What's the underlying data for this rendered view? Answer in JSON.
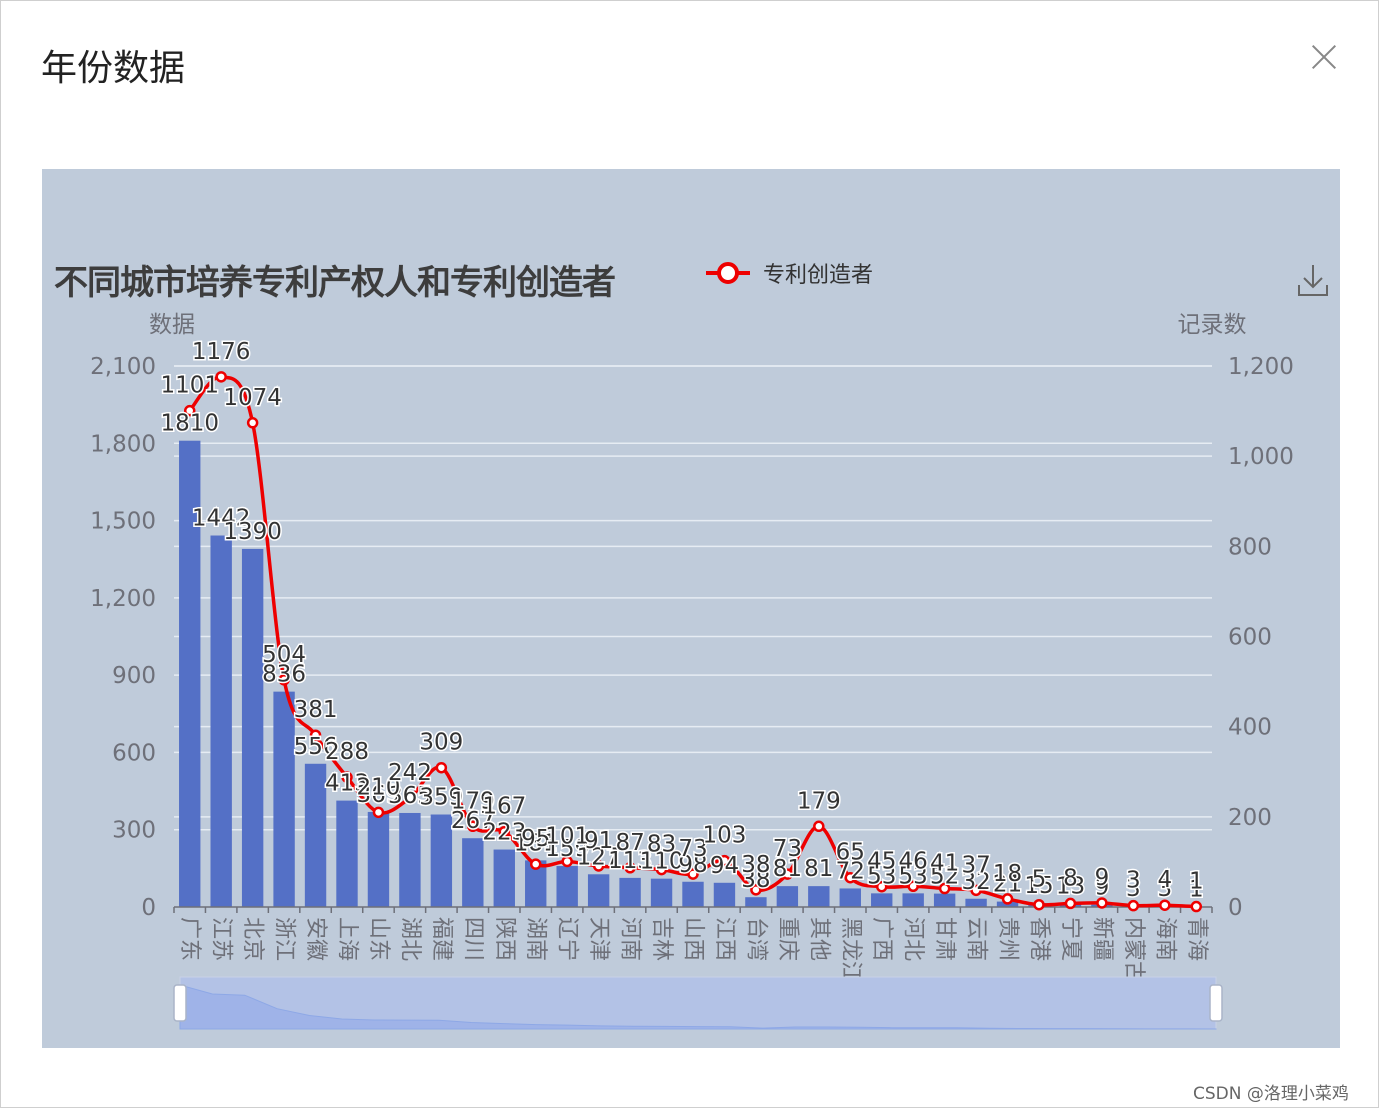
{
  "modal": {
    "title": "年份数据"
  },
  "watermark": "CSDN @洛理小菜鸡",
  "chart_data": {
    "type": "bar",
    "title": "不同城市培养专利产权人和专利创造者",
    "categories": [
      "广东",
      "江苏",
      "北京",
      "浙江",
      "安徽",
      "上海",
      "山东",
      "湖北",
      "福建",
      "四川",
      "陕西",
      "湖南",
      "辽宁",
      "天津",
      "河南",
      "吉林",
      "山西",
      "江西",
      "台湾",
      "重庆",
      "其他",
      "黑龙江",
      "广西",
      "河北",
      "甘肃",
      "云南",
      "贵州",
      "香港",
      "宁夏",
      "新疆",
      "内蒙古",
      "海南",
      "青海"
    ],
    "y_left": {
      "label": "数据",
      "range": [
        0,
        2100
      ],
      "ticks": [
        "0",
        "300",
        "600",
        "900",
        "1,200",
        "1,500",
        "1,800",
        "2,100"
      ]
    },
    "y_right": {
      "label": "记录数",
      "range": [
        0,
        1200
      ],
      "ticks": [
        "0",
        "200",
        "400",
        "600",
        "800",
        "1,000",
        "1,200"
      ]
    },
    "series": [
      {
        "type": "bar",
        "axis": "left",
        "color": "#5470c6",
        "values": [
          1810,
          1442,
          1390,
          836,
          556,
          413,
          369,
          365,
          359,
          267,
          223,
          181,
          159,
          127,
          113,
          110,
          98,
          94,
          38,
          81,
          81,
          72,
          53,
          53,
          52,
          32,
          21,
          15,
          13,
          9,
          3,
          3,
          1
        ]
      },
      {
        "type": "line",
        "name": "专利创造者",
        "axis": "right",
        "color": "#ee0000",
        "values": [
          1101,
          1176,
          1074,
          504,
          381,
          288,
          210,
          242,
          309,
          179,
          167,
          95,
          101,
          91,
          87,
          83,
          73,
          103,
          38,
          73,
          179,
          65,
          45,
          46,
          41,
          37,
          18,
          5,
          8,
          9,
          3,
          4,
          1
        ]
      }
    ],
    "grid": true,
    "legend": "top-center"
  }
}
